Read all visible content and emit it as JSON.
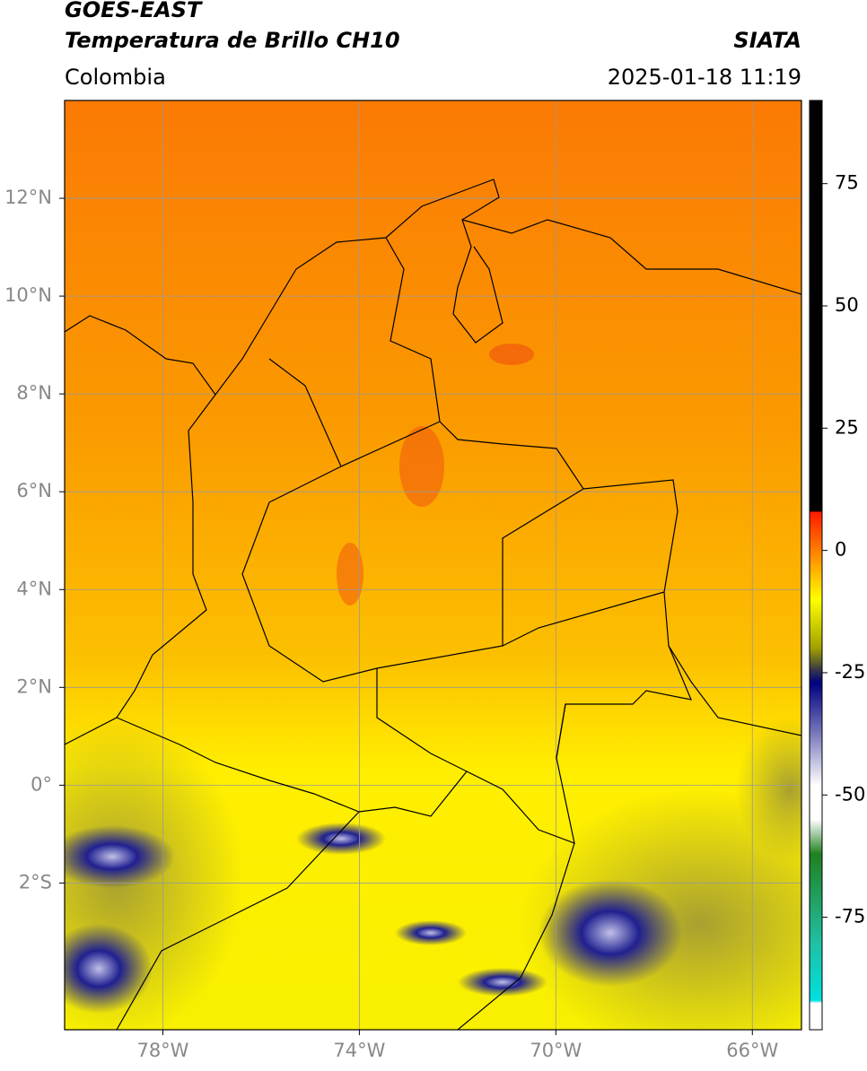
{
  "header": {
    "title": "GOES-EAST",
    "subtitle": "Temperatura de Brillo CH10",
    "agency": "SIATA",
    "region": "Colombia",
    "datetime": "2025-01-18 11:19"
  },
  "map": {
    "xlim": [
      -80,
      -65
    ],
    "ylim": [
      -5,
      14
    ],
    "xticks": [
      {
        "value": -78,
        "label": "78°W"
      },
      {
        "value": -74,
        "label": "74°W"
      },
      {
        "value": -70,
        "label": "70°W"
      },
      {
        "value": -66,
        "label": "66°W"
      }
    ],
    "yticks": [
      {
        "value": 12,
        "label": "12°N"
      },
      {
        "value": 10,
        "label": "10°N"
      },
      {
        "value": 8,
        "label": "8°N"
      },
      {
        "value": 6,
        "label": "6°N"
      },
      {
        "value": 4,
        "label": "4°N"
      },
      {
        "value": 2,
        "label": "2°N"
      },
      {
        "value": 0,
        "label": "0°"
      },
      {
        "value": -2,
        "label": "2°S"
      }
    ],
    "grid": true
  },
  "colorbar": {
    "clim": [
      -98,
      92
    ],
    "ticks": [
      75,
      50,
      25,
      0,
      -25,
      -50,
      -75
    ],
    "colormap": [
      {
        "value": 92,
        "color": "#000000"
      },
      {
        "value": 8,
        "color": "#000000"
      },
      {
        "value": 7.9,
        "color": "#ff1a00"
      },
      {
        "value": 0,
        "color": "#ff7f00"
      },
      {
        "value": -10,
        "color": "#ffff00"
      },
      {
        "value": -20,
        "color": "#a0a000"
      },
      {
        "value": -24,
        "color": "#404040"
      },
      {
        "value": -27,
        "color": "#000080"
      },
      {
        "value": -38,
        "color": "#8080c0"
      },
      {
        "value": -48,
        "color": "#ffffff"
      },
      {
        "value": -55,
        "color": "#ffffff"
      },
      {
        "value": -62,
        "color": "#208020"
      },
      {
        "value": -80,
        "color": "#20c0a0"
      },
      {
        "value": -92,
        "color": "#00e0e0"
      },
      {
        "value": -92.5,
        "color": "#ffffff"
      },
      {
        "value": -98,
        "color": "#ffffff"
      }
    ]
  }
}
